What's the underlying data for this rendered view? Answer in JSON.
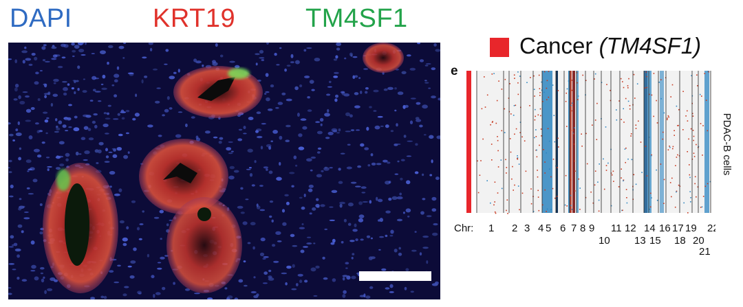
{
  "panel_letter": "e",
  "stains": [
    {
      "label": "DAPI",
      "color": "#2f6bc2"
    },
    {
      "label": "KRT19",
      "color": "#e0322b"
    },
    {
      "label": "TM4SF1",
      "color": "#23a34a"
    }
  ],
  "legend": {
    "label_prefix": "Cancer ",
    "label_gene": "(TM4SF1)",
    "swatch_color": "#e8262b"
  },
  "heatmap": {
    "y_label": "PDAC-B cells",
    "chr_prefix": "Chr:",
    "chromosomes_top": [
      "1",
      "2",
      "3",
      "4",
      "5",
      "6",
      "7",
      "8",
      "9",
      "11",
      "12",
      "14",
      "16",
      "17",
      "19",
      "22"
    ],
    "chromosomes_bottom": [
      "10",
      "13",
      "15",
      "18",
      "20",
      "21"
    ],
    "gain_color": "#c7381e",
    "loss_color": "#2e86c1",
    "background_color": "#f2f2f2",
    "sidebar_color": "#e8262b"
  },
  "scale_bar": {
    "color": "#ffffff"
  }
}
